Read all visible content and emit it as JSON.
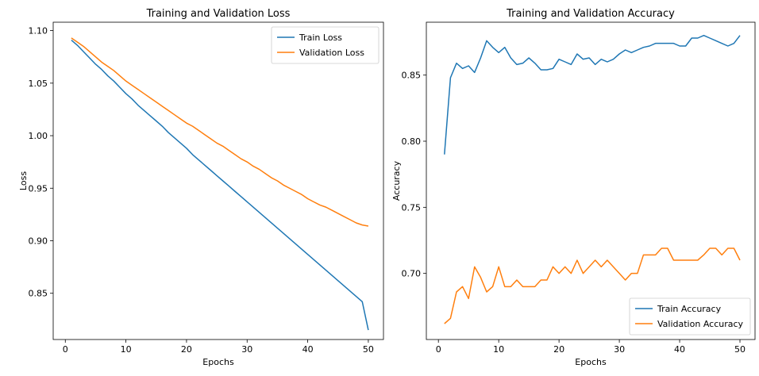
{
  "chart_data": [
    {
      "type": "line",
      "title": "Training and Validation Loss",
      "xlabel": "Epochs",
      "ylabel": "Loss",
      "xlim": [
        -2,
        52.5
      ],
      "ylim": [
        0.806,
        1.108
      ],
      "xticks": [
        0,
        10,
        20,
        30,
        40,
        50
      ],
      "yticks": [
        0.85,
        0.9,
        0.95,
        1.0,
        1.05,
        1.1
      ],
      "ytick_labels": [
        "0.85",
        "0.90",
        "0.95",
        "1.00",
        "1.05",
        "1.10"
      ],
      "legend_position": "top-right",
      "grid": false,
      "x": [
        1,
        2,
        3,
        4,
        5,
        6,
        7,
        8,
        9,
        10,
        11,
        12,
        13,
        14,
        15,
        16,
        17,
        18,
        19,
        20,
        21,
        22,
        23,
        24,
        25,
        26,
        27,
        28,
        29,
        30,
        31,
        32,
        33,
        34,
        35,
        36,
        37,
        38,
        39,
        40,
        41,
        42,
        43,
        44,
        45,
        46,
        47,
        48,
        49,
        50
      ],
      "series": [
        {
          "name": "Train Loss",
          "color": "#1f77b4",
          "values": [
            1.091,
            1.086,
            1.08,
            1.074,
            1.068,
            1.063,
            1.057,
            1.052,
            1.046,
            1.04,
            1.035,
            1.029,
            1.024,
            1.019,
            1.014,
            1.009,
            1.003,
            0.998,
            0.993,
            0.988,
            0.982,
            0.977,
            0.972,
            0.967,
            0.962,
            0.957,
            0.952,
            0.947,
            0.942,
            0.937,
            0.932,
            0.927,
            0.922,
            0.917,
            0.912,
            0.907,
            0.902,
            0.897,
            0.892,
            0.887,
            0.882,
            0.877,
            0.872,
            0.867,
            0.862,
            0.857,
            0.852,
            0.847,
            0.842,
            0.815
          ]
        },
        {
          "name": "Validation Loss",
          "color": "#ff7f0e",
          "values": [
            1.093,
            1.089,
            1.085,
            1.08,
            1.075,
            1.07,
            1.066,
            1.062,
            1.057,
            1.052,
            1.048,
            1.044,
            1.04,
            1.036,
            1.032,
            1.028,
            1.024,
            1.02,
            1.016,
            1.012,
            1.009,
            1.005,
            1.001,
            0.997,
            0.993,
            0.99,
            0.986,
            0.982,
            0.978,
            0.975,
            0.971,
            0.968,
            0.964,
            0.96,
            0.957,
            0.953,
            0.95,
            0.947,
            0.944,
            0.94,
            0.937,
            0.934,
            0.932,
            0.929,
            0.926,
            0.923,
            0.92,
            0.917,
            0.915,
            0.914
          ]
        }
      ]
    },
    {
      "type": "line",
      "title": "Training and Validation Accuracy",
      "xlabel": "Epochs",
      "ylabel": "Accuracy",
      "xlim": [
        -2,
        52.5
      ],
      "ylim": [
        0.65,
        0.89
      ],
      "xticks": [
        0,
        10,
        20,
        30,
        40,
        50
      ],
      "yticks": [
        0.7,
        0.75,
        0.8,
        0.85
      ],
      "ytick_labels": [
        "0.70",
        "0.75",
        "0.80",
        "0.85"
      ],
      "legend_position": "bottom-right",
      "grid": false,
      "x": [
        1,
        2,
        3,
        4,
        5,
        6,
        7,
        8,
        9,
        10,
        11,
        12,
        13,
        14,
        15,
        16,
        17,
        18,
        19,
        20,
        21,
        22,
        23,
        24,
        25,
        26,
        27,
        28,
        29,
        30,
        31,
        32,
        33,
        34,
        35,
        36,
        37,
        38,
        39,
        40,
        41,
        42,
        43,
        44,
        45,
        46,
        47,
        48,
        49,
        50
      ],
      "series": [
        {
          "name": "Train Accuracy",
          "color": "#1f77b4",
          "values": [
            0.79,
            0.848,
            0.859,
            0.855,
            0.857,
            0.852,
            0.863,
            0.876,
            0.871,
            0.867,
            0.871,
            0.863,
            0.858,
            0.859,
            0.863,
            0.859,
            0.854,
            0.854,
            0.855,
            0.862,
            0.86,
            0.858,
            0.866,
            0.862,
            0.863,
            0.858,
            0.862,
            0.86,
            0.862,
            0.866,
            0.869,
            0.867,
            0.869,
            0.871,
            0.872,
            0.874,
            0.874,
            0.874,
            0.874,
            0.872,
            0.872,
            0.878,
            0.878,
            0.88,
            0.878,
            0.876,
            0.874,
            0.872,
            0.874,
            0.88
          ]
        },
        {
          "name": "Validation Accuracy",
          "color": "#ff7f0e",
          "values": [
            0.662,
            0.666,
            0.686,
            0.69,
            0.681,
            0.705,
            0.697,
            0.686,
            0.69,
            0.705,
            0.69,
            0.69,
            0.695,
            0.69,
            0.69,
            0.69,
            0.695,
            0.695,
            0.705,
            0.7,
            0.705,
            0.7,
            0.71,
            0.7,
            0.705,
            0.71,
            0.705,
            0.71,
            0.705,
            0.7,
            0.695,
            0.7,
            0.7,
            0.714,
            0.714,
            0.714,
            0.719,
            0.719,
            0.71,
            0.71,
            0.71,
            0.71,
            0.71,
            0.714,
            0.719,
            0.719,
            0.714,
            0.719,
            0.719,
            0.71
          ]
        }
      ]
    }
  ]
}
